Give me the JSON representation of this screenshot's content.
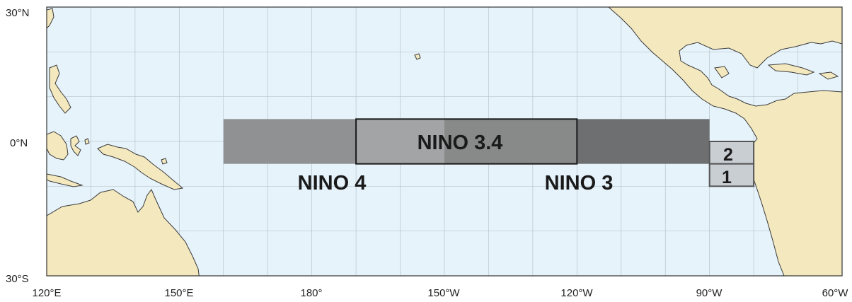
{
  "map": {
    "ocean_color": "#e6f3fb",
    "land_color": "#f3e8be",
    "coast_color": "#3a3a3a",
    "grid_color": "#b8c4cc",
    "lon_labels": [
      "120°E",
      "150°E",
      "180°",
      "150°W",
      "120°W",
      "90°W",
      "60°W"
    ],
    "lat_labels": [
      "30°N",
      "0°N",
      "30°S"
    ]
  },
  "regions": {
    "nino4": {
      "label": "NINO 4",
      "lon": [
        160,
        210
      ],
      "lat": [
        -5,
        5
      ],
      "color": "#8f9193"
    },
    "nino3": {
      "label": "NINO 3",
      "lon": [
        210,
        270
      ],
      "lat": [
        -5,
        5
      ],
      "color": "#6e6f70"
    },
    "nino34": {
      "label": "NINO 3.4",
      "lon": [
        190,
        240
      ],
      "lat": [
        -5,
        5
      ],
      "color": "#ffffff"
    },
    "nino12_2": {
      "label": "2",
      "lon": [
        270,
        280
      ],
      "lat": [
        -5,
        0
      ],
      "color": "#c9ced3"
    },
    "nino12_1": {
      "label": "1",
      "lon": [
        270,
        280
      ],
      "lat": [
        -10,
        -5
      ],
      "color": "#c9ced3"
    }
  }
}
